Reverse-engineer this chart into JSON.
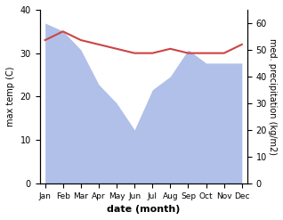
{
  "months": [
    "Jan",
    "Feb",
    "Mar",
    "Apr",
    "May",
    "Jun",
    "Jul",
    "Aug",
    "Sep",
    "Oct",
    "Nov",
    "Dec"
  ],
  "max_temp": [
    33,
    35,
    33,
    32,
    31,
    30,
    30,
    31,
    30,
    30,
    30,
    32
  ],
  "precipitation": [
    60,
    57,
    50,
    37,
    30,
    20,
    35,
    40,
    50,
    45,
    45,
    45
  ],
  "temp_color": "#cc4444",
  "precip_color": "#b0c0e8",
  "left_ylabel": "max temp (C)",
  "right_ylabel": "med. precipitation (kg/m2)",
  "xlabel": "date (month)",
  "ylim_left": [
    0,
    40
  ],
  "ylim_right": [
    0,
    65
  ],
  "yticks_left": [
    0,
    10,
    20,
    30,
    40
  ],
  "yticks_right": [
    0,
    10,
    20,
    30,
    40,
    50,
    60
  ],
  "background_color": "#ffffff",
  "fig_width": 3.18,
  "fig_height": 2.47,
  "dpi": 100
}
